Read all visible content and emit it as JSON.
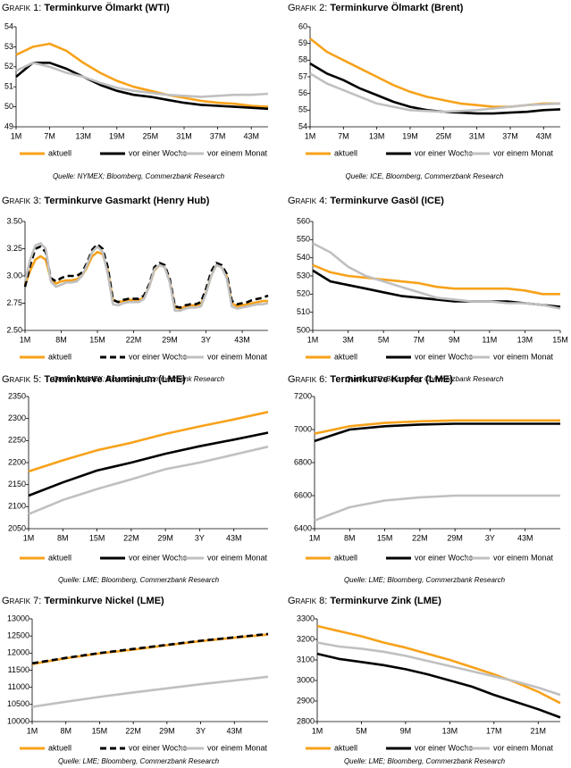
{
  "chart_data": [
    {
      "type": "line",
      "label": "Grafik 1:",
      "title": "Terminkurve Ölmarkt (WTI)",
      "source": "Quelle: NYMEX; Bloomberg, Commerzbank Research",
      "categories": [
        "1M",
        null,
        "7M",
        null,
        "13M",
        null,
        "19M",
        null,
        "25M",
        null,
        "31M",
        null,
        "37M",
        null,
        "43M",
        null
      ],
      "ylim": [
        49,
        54
      ],
      "yticks": [
        49,
        50,
        51,
        52,
        53,
        54
      ],
      "series": [
        {
          "name": "aktuell",
          "color": "#f7a21b",
          "values": [
            52.6,
            53.0,
            53.15,
            52.8,
            52.2,
            51.7,
            51.3,
            51.0,
            50.8,
            50.6,
            50.45,
            50.3,
            50.2,
            50.15,
            50.05,
            50.0
          ]
        },
        {
          "name": "vor einer Woche",
          "color": "#000000",
          "values": [
            51.5,
            52.2,
            52.2,
            51.9,
            51.5,
            51.1,
            50.8,
            50.6,
            50.5,
            50.35,
            50.2,
            50.1,
            50.05,
            50.0,
            49.95,
            49.9
          ]
        },
        {
          "name": "vor einem Monat",
          "color": "#c0c0c0",
          "values": [
            51.8,
            52.2,
            52.0,
            51.7,
            51.5,
            51.2,
            50.95,
            50.8,
            50.7,
            50.6,
            50.55,
            50.5,
            50.55,
            50.6,
            50.6,
            50.65
          ]
        }
      ]
    },
    {
      "type": "line",
      "label": "Grafik 2:",
      "title": "Terminkurve Ölmarkt (Brent)",
      "source": "Quelle: ICE, Bloomberg, Commerzbank Research",
      "categories": [
        "1M",
        null,
        "7M",
        null,
        "13M",
        null,
        "19M",
        null,
        "25M",
        null,
        "31M",
        null,
        "37M",
        null,
        "43M",
        null
      ],
      "ylim": [
        54,
        60
      ],
      "yticks": [
        54,
        55,
        56,
        57,
        58,
        59,
        60
      ],
      "series": [
        {
          "name": "aktuell",
          "color": "#f7a21b",
          "values": [
            59.3,
            58.5,
            58.0,
            57.5,
            57.0,
            56.5,
            56.1,
            55.8,
            55.6,
            55.4,
            55.3,
            55.2,
            55.2,
            55.3,
            55.4,
            55.4
          ]
        },
        {
          "name": "vor einer Woche",
          "color": "#000000",
          "values": [
            57.8,
            57.2,
            56.8,
            56.3,
            55.9,
            55.5,
            55.2,
            55.0,
            54.9,
            54.85,
            54.8,
            54.8,
            54.85,
            54.9,
            55.0,
            55.05
          ]
        },
        {
          "name": "vor einem Monat",
          "color": "#c0c0c0",
          "values": [
            57.2,
            56.6,
            56.2,
            55.8,
            55.4,
            55.2,
            55.0,
            54.95,
            54.9,
            54.95,
            55.0,
            55.1,
            55.2,
            55.3,
            55.35,
            55.4
          ]
        }
      ]
    },
    {
      "type": "line",
      "label": "Grafik 3:",
      "title": "Terminkurve Gasmarkt (Henry Hub)",
      "source": "Quelle: NYMEX; Bloomberg, Commerzbank Research",
      "categories": [
        "1M",
        null,
        null,
        null,
        null,
        null,
        null,
        "8M",
        null,
        null,
        null,
        null,
        null,
        null,
        "15M",
        null,
        null,
        null,
        null,
        null,
        null,
        "22M",
        null,
        null,
        null,
        null,
        null,
        null,
        "29M",
        null,
        null,
        null,
        null,
        null,
        null,
        "3Y",
        null,
        null,
        null,
        null,
        null,
        null,
        "43M",
        null,
        null,
        null,
        null,
        null
      ],
      "ylim": [
        2.5,
        3.5
      ],
      "yticks": [
        {
          "value": 2.5,
          "label": "2.50"
        },
        {
          "value": 2.75,
          "label": "2.75"
        },
        {
          "value": 3.0,
          "label": "3.00"
        },
        {
          "value": 3.25,
          "label": "3.25"
        },
        {
          "value": 3.5,
          "label": "3.50"
        }
      ],
      "series": [
        {
          "name": "aktuell",
          "color": "#f7a21b",
          "values": [
            2.92,
            3.05,
            3.15,
            3.18,
            3.15,
            2.97,
            2.93,
            2.95,
            2.96,
            2.96,
            2.97,
            3.0,
            3.08,
            3.18,
            3.22,
            3.2,
            3.05,
            2.78,
            2.76,
            2.77,
            2.78,
            2.78,
            2.78,
            2.8,
            2.9,
            3.05,
            3.1,
            3.08,
            2.95,
            2.71,
            2.7,
            2.72,
            2.73,
            2.73,
            2.74,
            2.85,
            3.0,
            3.1,
            3.08,
            3.0,
            2.75,
            2.72,
            2.73,
            2.74,
            2.75,
            2.76,
            2.77,
            2.77
          ]
        },
        {
          "name": "vor einer Woche",
          "color": "#000000",
          "line_style": "dashed",
          "values": [
            2.9,
            3.1,
            3.25,
            3.27,
            3.22,
            2.98,
            2.95,
            2.98,
            3.0,
            3.0,
            3.0,
            3.03,
            3.12,
            3.24,
            3.29,
            3.25,
            3.08,
            2.78,
            2.76,
            2.78,
            2.79,
            2.79,
            2.79,
            2.82,
            2.92,
            3.08,
            3.12,
            3.1,
            2.97,
            2.72,
            2.71,
            2.73,
            2.74,
            2.74,
            2.76,
            2.88,
            3.04,
            3.12,
            3.1,
            3.02,
            2.77,
            2.74,
            2.75,
            2.76,
            2.78,
            2.79,
            2.8,
            2.82
          ]
        },
        {
          "name": "vor einem Monat",
          "color": "#c0c0c0",
          "values": [
            2.95,
            3.15,
            3.28,
            3.3,
            3.25,
            2.95,
            2.9,
            2.92,
            2.94,
            2.94,
            2.95,
            3.0,
            3.1,
            3.22,
            3.27,
            3.22,
            3.02,
            2.74,
            2.73,
            2.75,
            2.76,
            2.76,
            2.76,
            2.79,
            2.9,
            3.06,
            3.1,
            3.08,
            2.94,
            2.68,
            2.68,
            2.7,
            2.71,
            2.71,
            2.72,
            2.84,
            3.0,
            3.1,
            3.08,
            2.98,
            2.72,
            2.7,
            2.71,
            2.72,
            2.73,
            2.74,
            2.74,
            2.75
          ]
        }
      ]
    },
    {
      "type": "line",
      "label": "Grafik 4:",
      "title": "Terminkurve Gasöl (ICE)",
      "source": "Quelle: ICE; Bloomberg, Commerzbank Research",
      "categories": [
        "1M",
        null,
        "3M",
        null,
        "5M",
        null,
        "7M",
        null,
        "9M",
        null,
        "11M",
        null,
        "13M",
        null,
        "15M"
      ],
      "ylim": [
        500,
        560
      ],
      "yticks": [
        500,
        510,
        520,
        530,
        540,
        550,
        560
      ],
      "series": [
        {
          "name": "aktuell",
          "color": "#f7a21b",
          "values": [
            536,
            532,
            530,
            529,
            528,
            527,
            526,
            524,
            523,
            523,
            523,
            523,
            522,
            520,
            520
          ]
        },
        {
          "name": "vor einer Woche",
          "color": "#000000",
          "values": [
            533,
            527,
            525,
            523,
            521,
            519,
            518,
            517,
            516,
            516,
            516,
            516,
            515,
            514,
            513
          ]
        },
        {
          "name": "vor einem Monat",
          "color": "#c0c0c0",
          "values": [
            548,
            543,
            535,
            530,
            527,
            524,
            521,
            518,
            517,
            516,
            516,
            515,
            515,
            514,
            512
          ]
        }
      ]
    },
    {
      "type": "line",
      "label": "Grafik 5:",
      "title": "Terminkurve Aluminium (LME)",
      "source": "Quelle: LME; Bloomberg, Commerzbank Research",
      "categories": [
        "1M",
        "8M",
        "15M",
        "22M",
        "29M",
        "3Y",
        "43M",
        null
      ],
      "ylim": [
        2050,
        2350
      ],
      "yticks": [
        2050,
        2100,
        2150,
        2200,
        2250,
        2300,
        2350
      ],
      "series": [
        {
          "name": "aktuell",
          "color": "#f7a21b",
          "values": [
            2180,
            2205,
            2228,
            2245,
            2265,
            2282,
            2298,
            2315
          ]
        },
        {
          "name": "vor einer Woche",
          "color": "#000000",
          "values": [
            2125,
            2155,
            2182,
            2200,
            2220,
            2237,
            2252,
            2268
          ]
        },
        {
          "name": "vor einem Monat",
          "color": "#c0c0c0",
          "values": [
            2083,
            2115,
            2140,
            2162,
            2185,
            2200,
            2218,
            2236
          ]
        }
      ]
    },
    {
      "type": "line",
      "label": "Grafik 6:",
      "title": "Terminkurve Kupfer (LME)",
      "source": "Quelle: LME; Bloomberg, Commerzbank Research",
      "categories": [
        "1M",
        "8M",
        "15M",
        "22M",
        "29M",
        "3Y",
        "43M",
        null
      ],
      "ylim": [
        6400,
        7200
      ],
      "yticks": [
        6400,
        6600,
        6800,
        7000,
        7200
      ],
      "series": [
        {
          "name": "aktuell",
          "color": "#f7a21b",
          "values": [
            6975,
            7020,
            7040,
            7050,
            7055,
            7055,
            7055,
            7055
          ]
        },
        {
          "name": "vor einer Woche",
          "color": "#000000",
          "values": [
            6930,
            7000,
            7020,
            7030,
            7035,
            7035,
            7035,
            7035
          ]
        },
        {
          "name": "vor einem Monat",
          "color": "#c0c0c0",
          "values": [
            6450,
            6530,
            6570,
            6590,
            6600,
            6600,
            6600,
            6600
          ]
        }
      ]
    },
    {
      "type": "line",
      "label": "Grafik 7:",
      "title": "Terminkurve Nickel (LME)",
      "source": "Quelle: LME; Bloomberg, Commerzbank Research",
      "categories": [
        "1M",
        "8M",
        "15M",
        "22M",
        "29M",
        "3Y",
        "43M",
        null
      ],
      "ylim": [
        10000,
        13000
      ],
      "yticks": [
        10000,
        10500,
        11000,
        11500,
        12000,
        12500,
        13000
      ],
      "series": [
        {
          "name": "aktuell",
          "color": "#f7a21b",
          "values": [
            11680,
            11850,
            11990,
            12100,
            12230,
            12350,
            12450,
            12540
          ]
        },
        {
          "name": "vor einer Woche",
          "color": "#000000",
          "line_style": "dashed",
          "values": [
            11700,
            11860,
            12000,
            12120,
            12240,
            12360,
            12460,
            12560
          ]
        },
        {
          "name": "vor einem Monat",
          "color": "#c0c0c0",
          "values": [
            10430,
            10580,
            10720,
            10850,
            10970,
            11090,
            11200,
            11310
          ]
        }
      ]
    },
    {
      "type": "line",
      "label": "Grafik 8:",
      "title": "Terminkurve Zink (LME)",
      "source": "Quelle: LME; Bloomberg, Commerzbank Research",
      "categories": [
        "1M",
        null,
        "5M",
        null,
        "9M",
        null,
        "13M",
        null,
        "17M",
        null,
        "21M",
        null
      ],
      "ylim": [
        2800,
        3300
      ],
      "yticks": [
        2800,
        2900,
        3000,
        3100,
        3200,
        3300
      ],
      "series": [
        {
          "name": "aktuell",
          "color": "#f7a21b",
          "values": [
            3265,
            3240,
            3215,
            3185,
            3160,
            3130,
            3100,
            3065,
            3030,
            2990,
            2945,
            2890
          ]
        },
        {
          "name": "vor einer Woche",
          "color": "#000000",
          "values": [
            3130,
            3105,
            3090,
            3075,
            3055,
            3030,
            3000,
            2970,
            2930,
            2895,
            2860,
            2820
          ]
        },
        {
          "name": "vor einem Monat",
          "color": "#c0c0c0",
          "values": [
            3185,
            3165,
            3155,
            3140,
            3120,
            3095,
            3070,
            3045,
            3020,
            2995,
            2965,
            2930
          ]
        }
      ]
    }
  ]
}
